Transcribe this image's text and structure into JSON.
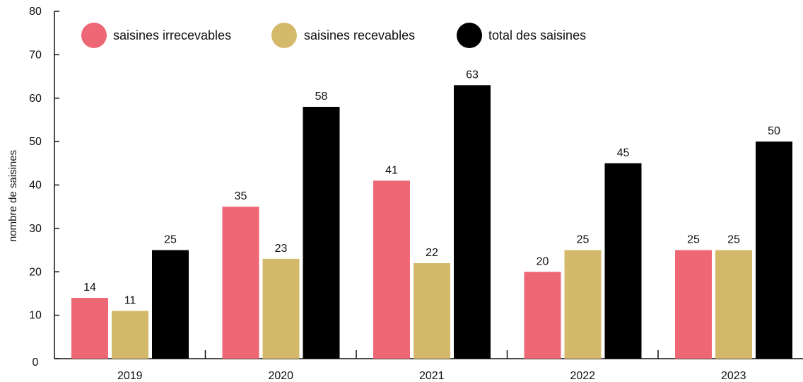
{
  "chart_data": {
    "type": "bar",
    "categories": [
      "2019",
      "2020",
      "2021",
      "2022",
      "2023"
    ],
    "series": [
      {
        "name": "saisines irrecevables",
        "color": "#ee6774",
        "values": [
          14,
          35,
          41,
          20,
          25
        ]
      },
      {
        "name": "saisines recevables",
        "color": "#d5b96b",
        "values": [
          11,
          23,
          22,
          25,
          25
        ]
      },
      {
        "name": "total des saisines",
        "color": "#000000",
        "values": [
          25,
          58,
          63,
          45,
          50
        ]
      }
    ],
    "ylabel": "nombre de saisines",
    "ylim": [
      0,
      80
    ],
    "yticks": [
      0,
      10,
      20,
      30,
      40,
      50,
      60,
      70,
      80
    ],
    "grid": false,
    "legend_position": "top"
  }
}
